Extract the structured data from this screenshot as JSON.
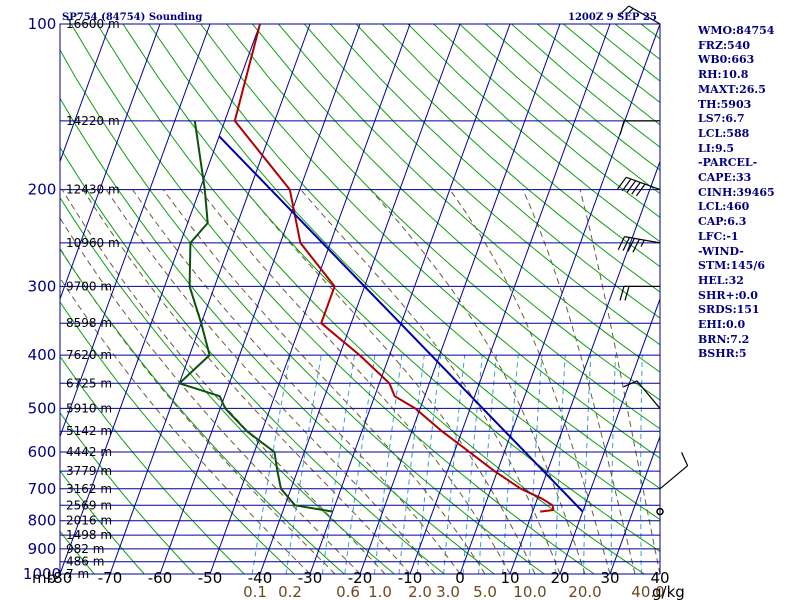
{
  "header": {
    "station": "SP754 (84754) Sounding",
    "time": "1200Z  9 SEP 25"
  },
  "stats": [
    "WMO:84754",
    "FRZ:540",
    "WB0:663",
    "RH:10.8",
    "MAXT:26.5",
    "TH:5903",
    "LS7:6.7",
    "LCL:588",
    "LI:9.5",
    "-PARCEL-",
    "CAPE:33",
    "CINH:39465",
    "LCL:460",
    "CAP:6.3",
    "LFC:-1",
    "-WIND-",
    "STM:145/6",
    "HEL:32",
    "SHR+:0.0",
    "SRDS:151",
    "EHI:0.0",
    "BRN:7.2",
    "BSHR:5"
  ],
  "axes": {
    "pressure_unit_label": "mb",
    "mixing_ratio_unit_label": "g/kg"
  },
  "colors": {
    "grid": "#000099",
    "temperature": "#b00000",
    "dewpoint": "#0d4f0d",
    "parcel": "#0000a8",
    "dry_adiabat": "#0fa00f",
    "moist_adiabat": "#6b5a3a",
    "mixing_ratio": "#3a9fd0",
    "wind_barb": "#000000"
  },
  "chart_data": {
    "type": "skew-t log-p sounding",
    "title": "SP754 (84754) Sounding",
    "date_time": "1200Z  9 SEP 25",
    "pressure_axis": {
      "unit": "mb",
      "ticks": [
        100,
        200,
        300,
        400,
        500,
        600,
        700,
        800,
        900,
        1000
      ],
      "range": [
        1000,
        100
      ],
      "scale": "log"
    },
    "temperature_axis": {
      "ticks": [
        -80,
        -70,
        -60,
        -50,
        -40,
        -30,
        -20,
        -10,
        0,
        10,
        20,
        30,
        40
      ],
      "range": [
        -80,
        40
      ]
    },
    "height_labels": [
      {
        "label": "16600 m",
        "p": 100
      },
      {
        "label": "14220 m",
        "p": 150
      },
      {
        "label": "12430 m",
        "p": 200
      },
      {
        "label": "10960 m",
        "p": 250
      },
      {
        "label": "9700 m",
        "p": 300
      },
      {
        "label": "8598 m",
        "p": 350
      },
      {
        "label": "7620 m",
        "p": 400
      },
      {
        "label": "6725 m",
        "p": 450
      },
      {
        "label": "5910 m",
        "p": 500
      },
      {
        "label": "5142 m",
        "p": 550
      },
      {
        "label": "4442 m",
        "p": 600
      },
      {
        "label": "3779 m",
        "p": 650
      },
      {
        "label": "3162 m",
        "p": 700
      },
      {
        "label": "2569 m",
        "p": 750
      },
      {
        "label": "2016 m",
        "p": 800
      },
      {
        "label": "1498 m",
        "p": 850
      },
      {
        "label": "982 m",
        "p": 900
      },
      {
        "label": "486 m",
        "p": 950
      },
      {
        "label": "7 m",
        "p": 1000
      }
    ],
    "mixing_ratio_labels": [
      "0.1",
      "0.2",
      "0.6",
      "1.0",
      "2.0",
      "3.0",
      "5.0",
      "10.0",
      "20.0",
      "40.0"
    ],
    "series": [
      {
        "key": "temperature",
        "points": [
          [
            100,
            -80
          ],
          [
            150,
            -78
          ],
          [
            200,
            -62
          ],
          [
            250,
            -56
          ],
          [
            300,
            -46
          ],
          [
            350,
            -46
          ],
          [
            400,
            -36
          ],
          [
            450,
            -28
          ],
          [
            475,
            -26
          ],
          [
            500,
            -21
          ],
          [
            550,
            -14
          ],
          [
            600,
            -7
          ],
          [
            650,
            -0.6
          ],
          [
            700,
            6
          ],
          [
            730,
            11
          ],
          [
            750,
            13.5
          ],
          [
            765,
            14
          ],
          [
            770,
            11.5
          ]
        ]
      },
      {
        "key": "dewpoint",
        "points": [
          [
            150,
            -86
          ],
          [
            200,
            -79
          ],
          [
            230,
            -76
          ],
          [
            250,
            -78
          ],
          [
            300,
            -75
          ],
          [
            350,
            -70
          ],
          [
            400,
            -66
          ],
          [
            450,
            -70
          ],
          [
            475,
            -61
          ],
          [
            500,
            -59
          ],
          [
            550,
            -53
          ],
          [
            600,
            -46
          ],
          [
            650,
            -44
          ],
          [
            700,
            -42
          ],
          [
            750,
            -38
          ],
          [
            770,
            -30
          ]
        ]
      },
      {
        "key": "parcel",
        "points": [
          [
            160,
            -80
          ],
          [
            770,
            20
          ]
        ]
      }
    ],
    "wind_barbs": [
      {
        "p": 100,
        "dir": 300,
        "speed_kt": 15
      },
      {
        "p": 150,
        "dir": 270,
        "speed_kt": 10
      },
      {
        "p": 200,
        "dir": 290,
        "speed_kt": 50
      },
      {
        "p": 250,
        "dir": 280,
        "speed_kt": 45
      },
      {
        "p": 300,
        "dir": 270,
        "speed_kt": 20
      },
      {
        "p": 500,
        "dir": 320,
        "speed_kt": 10
      },
      {
        "p": 700,
        "dir": 50,
        "speed_kt": 10
      },
      {
        "p": 770,
        "dir": 0,
        "speed_kt": 0
      }
    ]
  }
}
